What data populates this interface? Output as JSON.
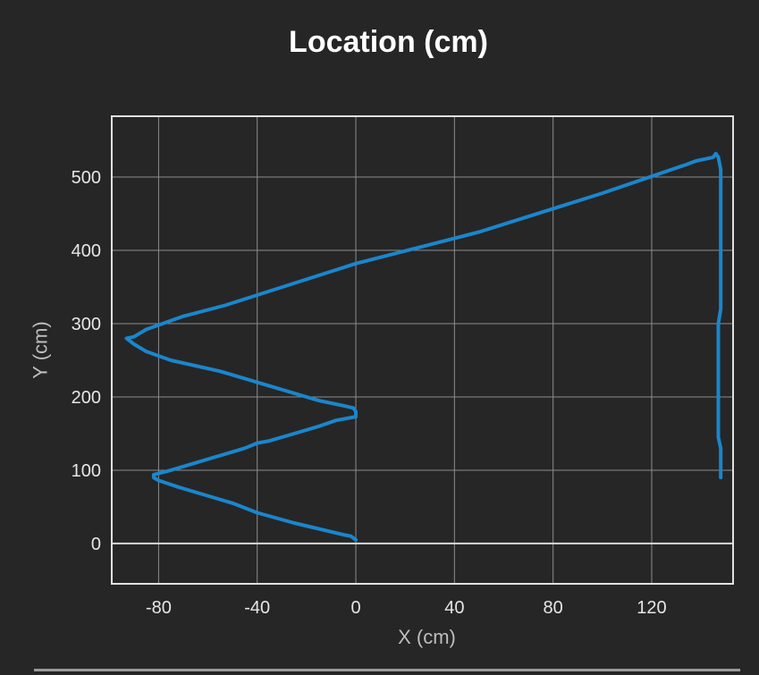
{
  "chart_data": {
    "type": "line",
    "title": "Location (cm)",
    "xlabel": "X (cm)",
    "ylabel": "Y (cm)",
    "xlim": [
      -99,
      153
    ],
    "ylim": [
      -55,
      583
    ],
    "x_ticks": [
      -80,
      -40,
      0,
      40,
      80,
      120
    ],
    "y_ticks": [
      0,
      100,
      200,
      300,
      400,
      500
    ],
    "grid": true,
    "legend": "none",
    "colors": {
      "background": "#262626",
      "line": "#1a86cc",
      "grid": "#8c8c8c",
      "zero_line": "#d9d9d9",
      "border": "#e0e0e0"
    },
    "series": [
      {
        "points": [
          [
            0,
            5
          ],
          [
            -2,
            10
          ],
          [
            -5,
            12
          ],
          [
            -25,
            28
          ],
          [
            -40,
            42
          ],
          [
            -50,
            55
          ],
          [
            -62,
            67
          ],
          [
            -72,
            77
          ],
          [
            -80,
            86
          ],
          [
            -82,
            90
          ],
          [
            -82,
            94
          ],
          [
            -75,
            100
          ],
          [
            -70,
            105
          ],
          [
            -50,
            125
          ],
          [
            -45,
            130
          ],
          [
            -40,
            137
          ],
          [
            -35,
            140
          ],
          [
            -25,
            150
          ],
          [
            -15,
            160
          ],
          [
            -8,
            168
          ],
          [
            0,
            173
          ],
          [
            0,
            180
          ],
          [
            -1,
            185
          ],
          [
            -5,
            188
          ],
          [
            -15,
            195
          ],
          [
            -20,
            200
          ],
          [
            -35,
            215
          ],
          [
            -55,
            235
          ],
          [
            -75,
            250
          ],
          [
            -85,
            262
          ],
          [
            -90,
            272
          ],
          [
            -93,
            280
          ],
          [
            -90,
            282
          ],
          [
            -85,
            292
          ],
          [
            -70,
            310
          ],
          [
            -53,
            325
          ],
          [
            0,
            382
          ],
          [
            50,
            425
          ],
          [
            100,
            478
          ],
          [
            134,
            517
          ],
          [
            138,
            522
          ],
          [
            145,
            527
          ],
          [
            146,
            532
          ],
          [
            147,
            527
          ],
          [
            148,
            510
          ],
          [
            148,
            470
          ],
          [
            148,
            440
          ],
          [
            148,
            415
          ],
          [
            148,
            380
          ],
          [
            148,
            340
          ],
          [
            148,
            320
          ],
          [
            147,
            300
          ],
          [
            147,
            250
          ],
          [
            147,
            200
          ],
          [
            147,
            145
          ],
          [
            148,
            130
          ],
          [
            148,
            90
          ]
        ]
      }
    ]
  }
}
